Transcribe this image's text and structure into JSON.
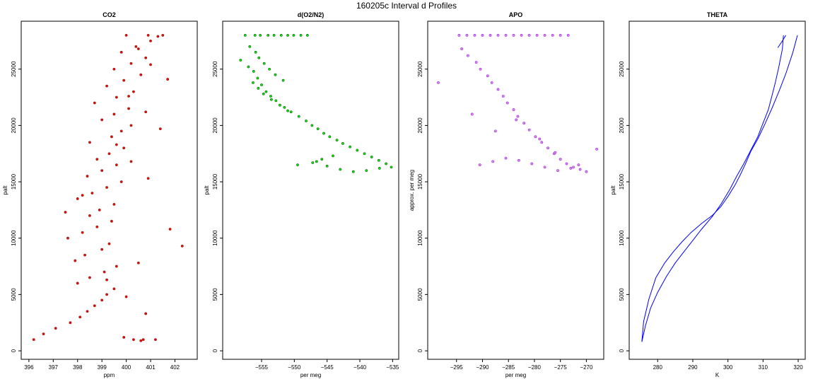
{
  "figure": {
    "title": "160205c   Interval d Profiles"
  },
  "chart_data": [
    {
      "type": "scatter",
      "title": "CO2",
      "xlabel": "ppm",
      "ylabel": "palt",
      "xlim": [
        395.8,
        402.8
      ],
      "ylim": [
        -500,
        29000
      ],
      "xticks": [
        396,
        397,
        398,
        399,
        400,
        401,
        402
      ],
      "yticks": [
        0,
        5000,
        10000,
        15000,
        20000,
        25000
      ],
      "marker_color": "#ff0000",
      "edge_color": "#7a2a1a",
      "series": [
        {
          "name": "",
          "x": [
            396.2,
            396.6,
            397.1,
            397.7,
            398.1,
            398.4,
            398.7,
            399.0,
            399.2,
            399.5,
            398.0,
            398.5,
            399.1,
            399.6,
            397.9,
            398.3,
            399.0,
            399.3,
            397.6,
            398.2,
            398.8,
            399.4,
            398.5,
            398.9,
            399.5,
            398.0,
            398.6,
            399.2,
            399.8,
            398.4,
            399.0,
            399.6,
            398.8,
            399.3,
            399.9,
            398.5,
            399.4,
            399.8,
            400.2,
            399.0,
            399.5,
            400.1,
            398.7,
            399.6,
            400.3,
            399.2,
            399.9,
            400.6,
            399.5,
            400.2,
            400.8,
            399.8,
            400.4,
            401.0,
            400.0,
            400.7,
            401.2,
            400.3,
            400.9,
            401.5,
            399.9,
            400.6,
            401.3,
            400.5,
            401.0,
            401.7,
            400.1,
            400.8,
            401.4,
            399.6,
            400.2,
            400.9,
            398.2,
            397.5,
            401.8,
            402.3,
            400.5,
            399.2,
            400.0,
            400.8
          ],
          "y": [
            1000,
            1500,
            2000,
            2500,
            3000,
            3500,
            4000,
            4500,
            5000,
            5500,
            6000,
            6500,
            7000,
            7500,
            8000,
            8500,
            9000,
            9500,
            10000,
            10500,
            11000,
            11500,
            12000,
            12500,
            13000,
            13500,
            14000,
            14500,
            15000,
            15500,
            16000,
            16500,
            17000,
            17500,
            18000,
            18500,
            19000,
            19500,
            20000,
            20500,
            21000,
            21500,
            22000,
            22500,
            23000,
            23500,
            24000,
            24500,
            25000,
            25500,
            26000,
            26500,
            27000,
            27500,
            28000,
            1000,
            1000,
            1000,
            28000,
            28000,
            1200,
            900,
            27900,
            26800,
            25400,
            24100,
            22600,
            21200,
            19700,
            18300,
            16800,
            15300,
            13800,
            12300,
            10800,
            9300,
            7800,
            6300,
            4800,
            3300
          ]
        }
      ]
    },
    {
      "type": "scatter",
      "title": "d(O2/N2)",
      "xlabel": "per meg",
      "ylabel": "palt",
      "xlim": [
        -560.5,
        -534.5
      ],
      "ylim": [
        -500,
        29000
      ],
      "xticks": [
        -555,
        -550,
        -545,
        -540,
        -535
      ],
      "yticks": [
        0,
        5000,
        10000,
        15000,
        20000,
        25000
      ],
      "marker_color": "#00ee00",
      "edge_color": "#1f5a1f",
      "series": [
        {
          "name": "",
          "x": [
            -557.5,
            -556.0,
            -555.2,
            -554.0,
            -553.1,
            -552.0,
            -551.0,
            -550.1,
            -549.0,
            -548.0,
            -558.2,
            -557.0,
            -556.2,
            -555.6,
            -555.0,
            -554.3,
            -553.6,
            -552.8,
            -551.5,
            -550.5,
            -549.3,
            -548.2,
            -547.3,
            -546.4,
            -545.5,
            -544.6,
            -543.5,
            -542.6,
            -541.5,
            -540.4,
            -539.3,
            -538.2,
            -537.1,
            -536.0,
            -535.2,
            -546.6,
            -545.0,
            -543.0,
            -541.0,
            -539.0,
            -537.0,
            -549.5,
            -547.2,
            -545.8,
            -544.1,
            -556.8,
            -555.9,
            -555.4,
            -554.6,
            -553.8,
            -552.9,
            -551.7,
            -556.3,
            -555.5,
            -554.7,
            -553.5,
            -552.2,
            -551.0
          ],
          "y": [
            28000,
            28000,
            28000,
            28000,
            28000,
            28000,
            28000,
            28000,
            28000,
            28000,
            25800,
            25200,
            24800,
            24200,
            23600,
            23000,
            22600,
            22200,
            21600,
            21200,
            20800,
            20400,
            20000,
            19700,
            19300,
            19000,
            18700,
            18400,
            18100,
            17800,
            17500,
            17200,
            16900,
            16600,
            16300,
            16800,
            16400,
            16100,
            15900,
            16000,
            16200,
            16500,
            16700,
            17000,
            17300,
            27000,
            26500,
            26000,
            25500,
            25000,
            24500,
            24000,
            23800,
            23300,
            22800,
            22300,
            21800,
            21300
          ]
        }
      ]
    },
    {
      "type": "scatter",
      "title": "APO",
      "xlabel": "per meg",
      "ylabel": "approx. per meg",
      "xlim": [
        -300,
        -267.2
      ],
      "ylim": [
        -500,
        29000
      ],
      "xticks": [
        -295,
        -290,
        -285,
        -280,
        -275,
        -270
      ],
      "yticks": [
        0,
        5000,
        10000,
        15000,
        20000,
        25000
      ],
      "marker_color": "#ee82ee",
      "edge_color": "#8a2be2",
      "series": [
        {
          "name": "",
          "x": [
            -294.5,
            -293.0,
            -291.5,
            -290.0,
            -288.5,
            -287.0,
            -285.5,
            -284.0,
            -282.5,
            -281.0,
            -279.5,
            -278.0,
            -276.5,
            -275.0,
            -273.5,
            -294.0,
            -292.8,
            -291.2,
            -290.4,
            -289.0,
            -288.2,
            -287.0,
            -286.0,
            -285.2,
            -284.0,
            -283.2,
            -282.0,
            -281.0,
            -279.8,
            -278.6,
            -277.4,
            -276.2,
            -275.0,
            -273.8,
            -272.5,
            -271.2,
            -270.0,
            -290.5,
            -288.0,
            -285.5,
            -283.0,
            -280.5,
            -278.0,
            -275.5,
            -273.0,
            -271.5,
            -298.5,
            -268.0,
            -292.0,
            -287.5,
            -283.5,
            -279.0,
            -276.0
          ],
          "y": [
            28000,
            28000,
            28000,
            28000,
            28000,
            28000,
            28000,
            28000,
            28000,
            28000,
            28000,
            28000,
            28000,
            28000,
            28000,
            26800,
            26200,
            25600,
            25000,
            24400,
            23800,
            23200,
            22600,
            22000,
            21400,
            20800,
            20200,
            19600,
            19000,
            18500,
            18000,
            17500,
            17000,
            16600,
            16300,
            16100,
            15900,
            16500,
            16800,
            17100,
            16900,
            16600,
            16300,
            16000,
            16200,
            16500,
            23800,
            17900,
            21000,
            19500,
            20500,
            18800,
            17600
          ]
        }
      ]
    },
    {
      "type": "line",
      "title": "THETA",
      "xlabel": "K",
      "ylabel": "palt",
      "xlim": [
        272.7,
        321.2
      ],
      "ylim": [
        -500,
        29000
      ],
      "xticks": [
        280,
        290,
        300,
        310,
        320
      ],
      "yticks": [
        0,
        5000,
        10000,
        15000,
        20000,
        25000
      ],
      "line_color": "#0000ff",
      "series": [
        {
          "name": "",
          "x": [
            275.5,
            276.5,
            278.0,
            280.0,
            282.5,
            285.0,
            287.5,
            290.0,
            292.5,
            295.5,
            298.0,
            300.5,
            302.5,
            304.5,
            306.5,
            308.5,
            310.0,
            311.5,
            312.5,
            313.5,
            314.5,
            315.5,
            315.8
          ],
          "y": [
            800,
            2200,
            3800,
            5200,
            6600,
            7800,
            8800,
            9800,
            10800,
            11900,
            13000,
            14300,
            15500,
            16600,
            17800,
            19000,
            20200,
            21400,
            22600,
            23800,
            25200,
            26800,
            28000
          ]
        },
        {
          "name": "",
          "x": [
            275.5,
            276.0,
            277.5,
            279.5,
            282.0,
            284.5,
            287.0,
            289.5,
            292.5,
            295.5,
            298.0,
            300.0,
            302.0,
            303.5,
            305.0,
            306.5,
            308.5,
            310.5,
            312.5,
            314.5,
            316.5,
            318.5,
            319.8
          ],
          "y": [
            800,
            2600,
            4600,
            6500,
            7800,
            8800,
            9700,
            10500,
            11300,
            12000,
            12800,
            13700,
            14700,
            15600,
            16600,
            17700,
            18800,
            20100,
            21500,
            23000,
            24600,
            26500,
            28000
          ]
        },
        {
          "name": "",
          "x": [
            314.2,
            315.5,
            316.5
          ],
          "y": [
            26900,
            27500,
            28000
          ]
        }
      ]
    }
  ]
}
